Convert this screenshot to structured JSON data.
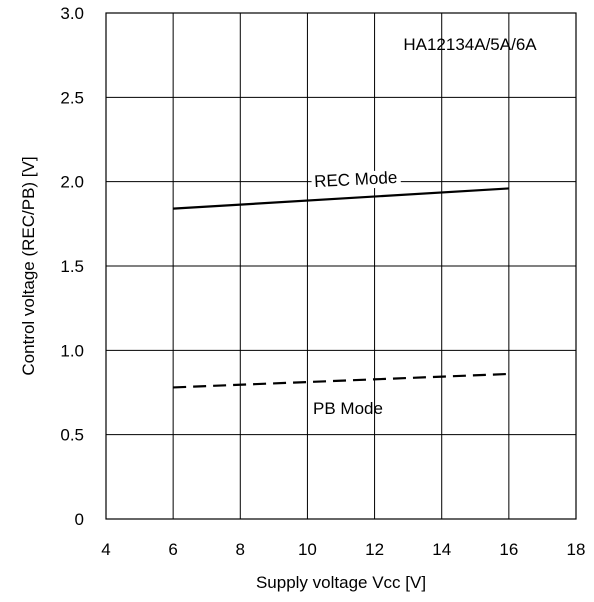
{
  "chart_data": {
    "type": "line",
    "annotation": "HA12134A/5A/6A",
    "xlabel": "Supply voltage Vcc [V]",
    "ylabel": "Control voltage (REC/PB)  [V]",
    "xlim": [
      4,
      18
    ],
    "ylim": [
      0,
      3.0
    ],
    "x_ticks": [
      "4",
      "6",
      "8",
      "10",
      "12",
      "14",
      "16",
      "18"
    ],
    "y_ticks": [
      "0",
      "0.5",
      "1.0",
      "1.5",
      "2.0",
      "2.5",
      "3.0"
    ],
    "grid": true,
    "series": [
      {
        "name": "REC Mode",
        "x": [
          6,
          16
        ],
        "y": [
          1.84,
          1.96
        ],
        "style": "solid"
      },
      {
        "name": "PB Mode",
        "x": [
          6,
          16
        ],
        "y": [
          0.78,
          0.86
        ],
        "style": "dashed"
      }
    ]
  }
}
